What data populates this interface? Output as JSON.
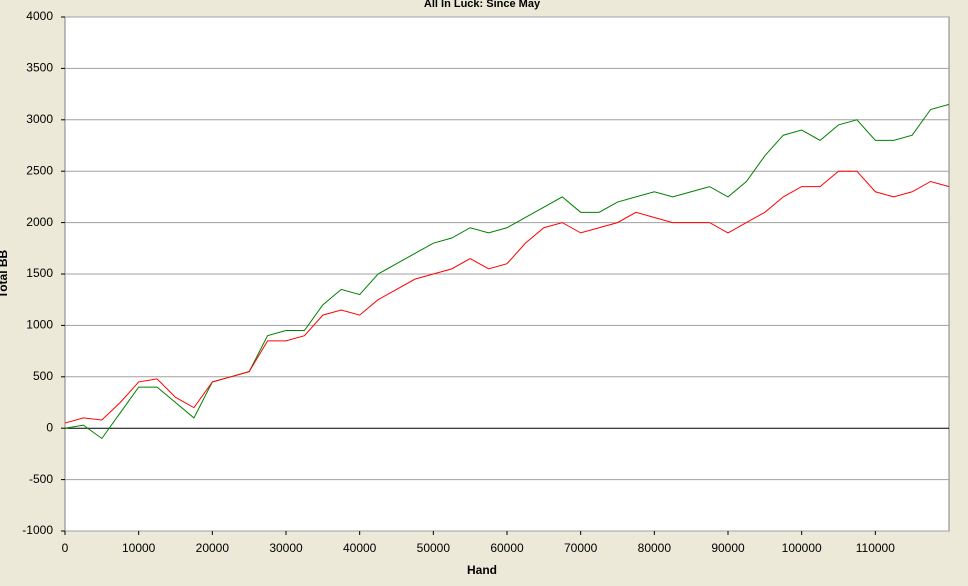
{
  "chart_data": {
    "type": "line",
    "title": "All In Luck: Since May",
    "xlabel": "Hand",
    "ylabel": "Total BB",
    "x": [
      0,
      2500,
      5000,
      7500,
      10000,
      12500,
      15000,
      17500,
      20000,
      22500,
      25000,
      27500,
      30000,
      32500,
      35000,
      37500,
      40000,
      42500,
      45000,
      47500,
      50000,
      52500,
      55000,
      57500,
      60000,
      62500,
      65000,
      67500,
      70000,
      72500,
      75000,
      77500,
      80000,
      82500,
      85000,
      87500,
      90000,
      92500,
      95000,
      97500,
      100000,
      102500,
      105000,
      107500,
      110000,
      112500,
      115000,
      117500,
      120000
    ],
    "series": [
      {
        "color": "#008000",
        "values": [
          0,
          30,
          -100,
          150,
          400,
          400,
          250,
          100,
          450,
          500,
          550,
          900,
          950,
          950,
          1200,
          1350,
          1300,
          1500,
          1600,
          1700,
          1800,
          1850,
          1950,
          1900,
          1950,
          2050,
          2150,
          2250,
          2100,
          2100,
          2200,
          2250,
          2300,
          2250,
          2300,
          2350,
          2250,
          2400,
          2650,
          2850,
          2900,
          2800,
          2950,
          3000,
          2800,
          2800,
          2850,
          3100,
          3150
        ]
      },
      {
        "color": "#ff0000",
        "values": [
          50,
          100,
          80,
          250,
          450,
          480,
          300,
          200,
          450,
          500,
          550,
          850,
          850,
          900,
          1100,
          1150,
          1100,
          1250,
          1350,
          1450,
          1500,
          1550,
          1650,
          1550,
          1600,
          1800,
          1950,
          2000,
          1900,
          1950,
          2000,
          2100,
          2050,
          2000,
          2000,
          2000,
          1900,
          2000,
          2100,
          2250,
          2350,
          2350,
          2500,
          2500,
          2300,
          2250,
          2300,
          2400,
          2350
        ]
      }
    ],
    "xlim": [
      0,
      120000
    ],
    "xticks": [
      0,
      10000,
      20000,
      30000,
      40000,
      50000,
      60000,
      70000,
      80000,
      90000,
      100000,
      110000
    ],
    "ylim": [
      -1000,
      4000
    ],
    "yticks": [
      -1000,
      -500,
      0,
      500,
      1000,
      1500,
      2000,
      2500,
      3000,
      3500,
      4000
    ],
    "grid": true
  }
}
